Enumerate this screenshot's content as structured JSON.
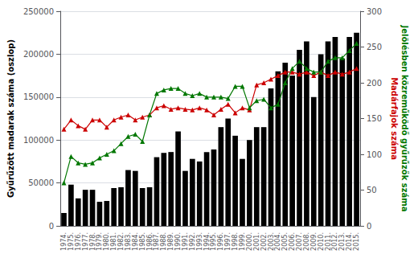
{
  "chart_data": {
    "type": "bar",
    "categories": [
      "1974.",
      "1975.",
      "1976.",
      "1977.",
      "1978.",
      "1979.",
      "1980.",
      "1981.",
      "1982.",
      "1983.",
      "1984.",
      "1985.",
      "1986.",
      "1987.",
      "1988.",
      "1989.",
      "1990.",
      "1991.",
      "1992.",
      "1993.",
      "1994.",
      "1995.",
      "1996.",
      "1997.",
      "1998.",
      "1999.",
      "2000.",
      "2001.",
      "2002.",
      "2003.",
      "2004.",
      "2005.",
      "2006.",
      "2007.",
      "2008.",
      "2009.",
      "2010.",
      "2011.",
      "2012.",
      "2013.",
      "2014.",
      "2015."
    ],
    "series": [
      {
        "type": "bar",
        "color": "#000000",
        "values": [
          15000,
          48000,
          32000,
          42000,
          42000,
          28000,
          29000,
          44000,
          45000,
          65000,
          64000,
          44000,
          45000,
          80000,
          85000,
          86000,
          110000,
          64000,
          78000,
          75000,
          86000,
          89000,
          115000,
          125000,
          105000,
          78000,
          100000,
          115000,
          115000,
          160000,
          180000,
          190000,
          175000,
          205000,
          215000,
          150000,
          200000,
          215000,
          220000,
          195000,
          220000,
          225000
        ]
      },
      {
        "type": "line",
        "axis": "y2",
        "color": "#cc0000",
        "marker": "triangle",
        "values": [
          135,
          148,
          140,
          135,
          148,
          148,
          138,
          148,
          152,
          155,
          148,
          152,
          155,
          165,
          168,
          163,
          165,
          163,
          162,
          165,
          162,
          155,
          163,
          170,
          158,
          165,
          162,
          197,
          200,
          205,
          210,
          215,
          215,
          212,
          215,
          210,
          215,
          210,
          215,
          212,
          215,
          220
        ]
      },
      {
        "type": "line",
        "axis": "y2",
        "color": "#007700",
        "marker": "triangle",
        "values": [
          60,
          97,
          88,
          86,
          88,
          95,
          100,
          105,
          115,
          125,
          128,
          118,
          155,
          185,
          190,
          192,
          192,
          185,
          182,
          185,
          180,
          180,
          180,
          178,
          195,
          195,
          165,
          175,
          177,
          165,
          170,
          200,
          220,
          230,
          220,
          215,
          215,
          230,
          235,
          235,
          245,
          255
        ]
      }
    ],
    "ylabel": "Gyűrűzött madarak száma (oszlop)",
    "y2label": "Madárfajok száma",
    "y3label": "Jelölésben közreműködő gyűrűzők száma",
    "ylim": [
      0,
      250000
    ],
    "yticks": [
      0,
      50000,
      100000,
      150000,
      200000,
      250000
    ],
    "y2lim": [
      0,
      300
    ],
    "y2ticks": [
      0,
      50,
      100,
      150,
      200,
      250,
      300
    ],
    "grid": true
  }
}
